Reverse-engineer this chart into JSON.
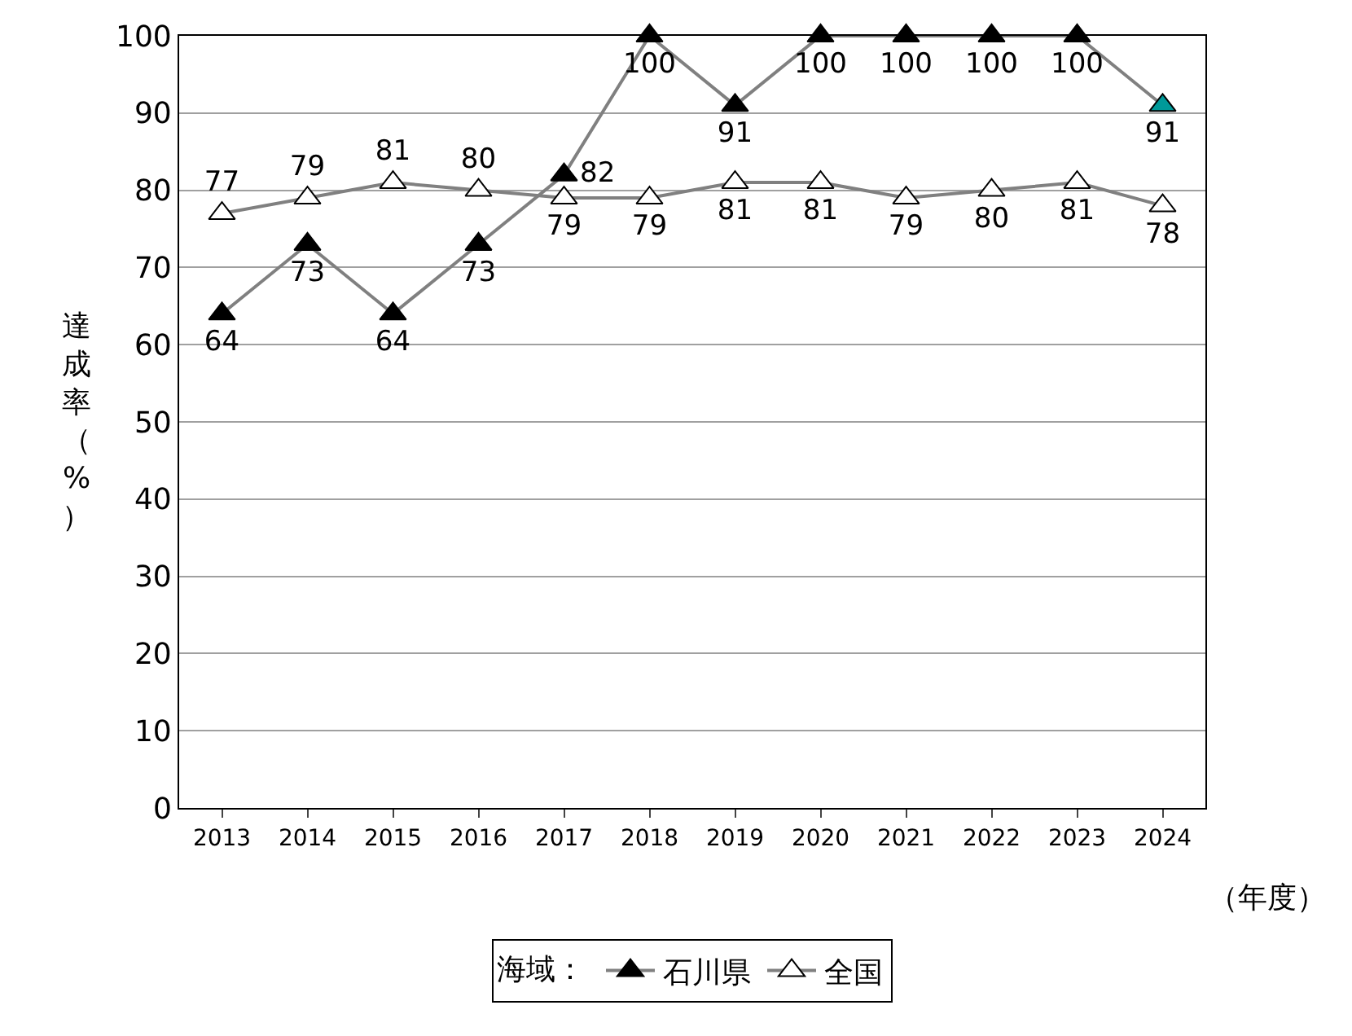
{
  "chart_data": {
    "type": "line",
    "categories": [
      "2013",
      "2014",
      "2015",
      "2016",
      "2017",
      "2018",
      "2019",
      "2020",
      "2021",
      "2022",
      "2023",
      "2024"
    ],
    "series": [
      {
        "name": "石川県",
        "color": "#808080",
        "colors": [
          "#000000",
          "#000000",
          "#000000",
          "#000000",
          "#000000",
          "#000000",
          "#000000",
          "#000000",
          "#000000",
          "#000000",
          "#000000",
          "#009999"
        ],
        "values": [
          64,
          73,
          64,
          73,
          82,
          100,
          91,
          100,
          100,
          100,
          100,
          91
        ]
      },
      {
        "name": "全国",
        "color": "#808080",
        "colors": [
          "#ffffff",
          "#ffffff",
          "#ffffff",
          "#ffffff",
          "#ffffff",
          "#ffffff",
          "#ffffff",
          "#ffffff",
          "#ffffff",
          "#ffffff",
          "#ffffff",
          "#ffffff"
        ],
        "values": [
          77,
          79,
          81,
          80,
          79,
          79,
          81,
          81,
          79,
          80,
          81,
          78
        ]
      }
    ],
    "ylabel": "達成率（%）",
    "xlabel": "（年度）",
    "legend_title": "海域：",
    "ylim": [
      0,
      100
    ],
    "yticks": [
      0,
      10,
      20,
      30,
      40,
      50,
      60,
      70,
      80,
      90,
      100
    ],
    "grid": "y",
    "legend": "bottom",
    "marker": "triangle",
    "line_style": "solid",
    "data_labels": true
  }
}
